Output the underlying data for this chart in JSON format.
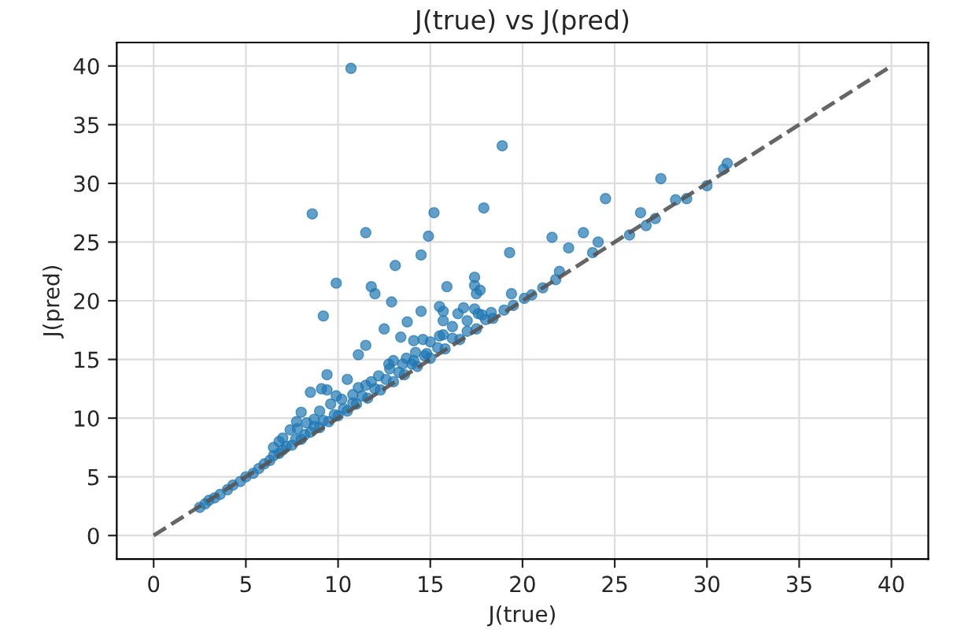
{
  "chart_data": {
    "type": "scatter",
    "title": "J(true) vs J(pred)",
    "xlabel": "J(true)",
    "ylabel": "J(pred)",
    "xlim": [
      -2,
      42
    ],
    "ylim": [
      -2,
      42
    ],
    "xticks": [
      0,
      5,
      10,
      15,
      20,
      25,
      30,
      35,
      40
    ],
    "yticks": [
      0,
      5,
      10,
      15,
      20,
      25,
      30,
      35,
      40
    ],
    "grid": true,
    "marker": "circle",
    "series": [
      {
        "color": "#1f77b4",
        "x": [
          10.7,
          18.9,
          8.6,
          15.2,
          17.9,
          11.5,
          14.9,
          19.3,
          14.5,
          13.1,
          9.9,
          11.8,
          12.0,
          15.9,
          17.4,
          17.4,
          17.7,
          17.5,
          19.4,
          31.1,
          30.9,
          27.5,
          30.0,
          28.3,
          28.9,
          24.5,
          26.4,
          27.2,
          26.7,
          25.8,
          21.6,
          23.3,
          22.5,
          24.1,
          23.8,
          22.0,
          21.8,
          21.1,
          20.5,
          20.1,
          9.2,
          12.5,
          13.75,
          14.5,
          15.5,
          15.7,
          12.9,
          16.5,
          16.8,
          17.4,
          17.6,
          13.4,
          14.1,
          14.6,
          15.7,
          15.7,
          11.1,
          11.5,
          9.4,
          10.5,
          8.5,
          9.1,
          9.4,
          8.0,
          7.4,
          6.8,
          11.1,
          11.8,
          12.75,
          13.0,
          13.7,
          14.1,
          14.8,
          9.9,
          8.7,
          7.75,
          2.5,
          2.8,
          3.0,
          3.3,
          3.6,
          4.0,
          4.3,
          4.7,
          5.0,
          5.4,
          5.7,
          6.0,
          6.3,
          6.5,
          6.8,
          7.0,
          7.2,
          7.5,
          7.7,
          8.0,
          8.2,
          8.5,
          8.7,
          9.0,
          9.2,
          9.5,
          9.8,
          10.0,
          10.3,
          10.5,
          10.8,
          11.0,
          11.3,
          11.6,
          12.0,
          12.3,
          12.6,
          13.0,
          13.3,
          13.6,
          14.0,
          14.3,
          14.7,
          15.0,
          15.4,
          15.8,
          16.2,
          16.6,
          17.0,
          17.5,
          18.0,
          18.4,
          19.0,
          19.5,
          6.5,
          7.0,
          7.8,
          8.3,
          9.0,
          9.6,
          10.2,
          10.8,
          11.5,
          12.2,
          12.8,
          13.5,
          14.2,
          15.0,
          15.5,
          16.2,
          17.0,
          17.8,
          18.3
        ],
        "values": [
          39.8,
          33.2,
          27.4,
          27.5,
          27.9,
          25.8,
          25.5,
          24.1,
          23.9,
          23.0,
          21.5,
          21.2,
          20.6,
          21.2,
          22.0,
          21.3,
          20.9,
          20.6,
          20.6,
          31.7,
          31.2,
          30.4,
          29.8,
          28.6,
          28.7,
          28.7,
          27.5,
          27.0,
          26.4,
          25.6,
          25.4,
          25.8,
          24.5,
          25.0,
          24.1,
          22.5,
          21.8,
          21.1,
          20.5,
          20.2,
          18.7,
          17.6,
          18.2,
          19.1,
          19.5,
          19.1,
          19.9,
          18.9,
          19.4,
          19.3,
          18.9,
          16.9,
          16.6,
          16.7,
          18.3,
          17.1,
          15.4,
          16.2,
          13.7,
          13.3,
          12.2,
          12.5,
          12.4,
          10.5,
          9.0,
          8.0,
          12.6,
          13.1,
          14.6,
          14.9,
          15.1,
          14.9,
          15.5,
          11.9,
          9.9,
          9.7,
          2.4,
          2.7,
          3.0,
          3.2,
          3.5,
          3.9,
          4.3,
          4.6,
          5.0,
          5.3,
          5.7,
          6.1,
          6.4,
          6.8,
          7.0,
          7.3,
          7.6,
          7.7,
          8.2,
          8.2,
          8.6,
          8.8,
          9.3,
          9.2,
          9.8,
          9.7,
          10.3,
          10.2,
          10.8,
          10.6,
          11.3,
          11.2,
          11.9,
          11.7,
          12.5,
          12.4,
          13.3,
          13.1,
          13.9,
          13.7,
          14.6,
          14.4,
          15.3,
          15.1,
          16.0,
          15.9,
          16.8,
          16.7,
          17.4,
          17.6,
          18.4,
          18.5,
          19.2,
          19.6,
          7.5,
          8.3,
          9.1,
          9.6,
          10.6,
          11.2,
          11.6,
          12.0,
          12.8,
          13.6,
          14.2,
          14.6,
          15.6,
          16.5,
          17.0,
          17.8,
          18.3,
          18.8,
          19.0
        ]
      },
      {
        "type": "line",
        "color": "#555555",
        "line_style": "dashed",
        "marker": "none",
        "x": [
          0,
          40
        ],
        "values": [
          0,
          40
        ]
      }
    ]
  }
}
